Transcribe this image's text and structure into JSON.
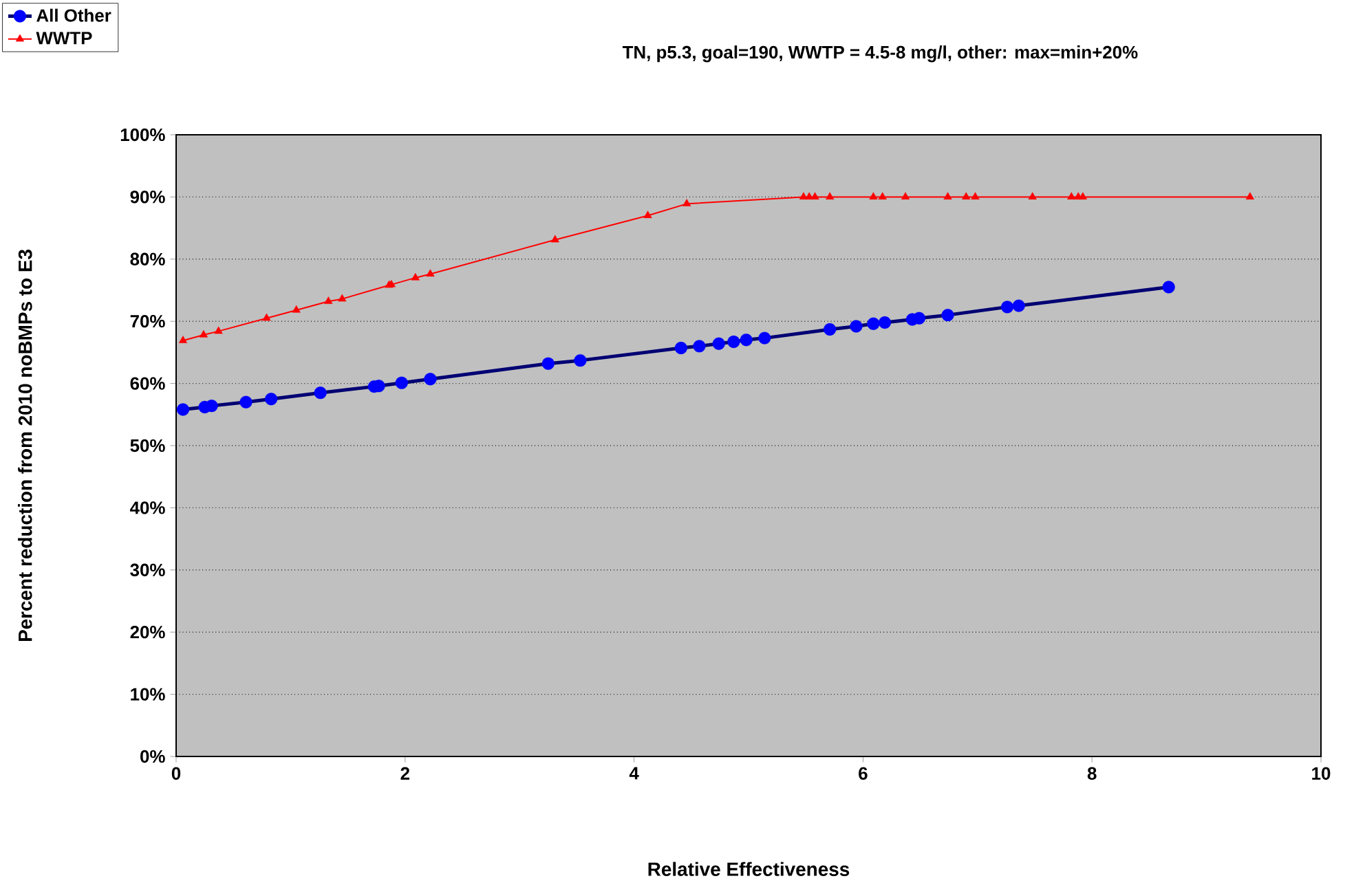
{
  "chart_data": {
    "type": "line",
    "title": "TN, p5.3, goal=190, WWTP = 4.5-8 mg/l, other: max=min+20%",
    "xlabel": "Relative Effectiveness",
    "ylabel": "Percent reduction from 2010 noBMPs to E3",
    "xlim": [
      0,
      10
    ],
    "xticks": [
      0,
      2,
      4,
      6,
      8,
      10
    ],
    "ylim": [
      0,
      100
    ],
    "yticks": [
      {
        "value": 0,
        "label": "0%"
      },
      {
        "value": 10,
        "label": "10%"
      },
      {
        "value": 20,
        "label": "20%"
      },
      {
        "value": 30,
        "label": "30%"
      },
      {
        "value": 40,
        "label": "40%"
      },
      {
        "value": 50,
        "label": "50%"
      },
      {
        "value": 60,
        "label": "60%"
      },
      {
        "value": 70,
        "label": "70%"
      },
      {
        "value": 80,
        "label": "80%"
      },
      {
        "value": 90,
        "label": "90%"
      },
      {
        "value": 100,
        "label": "100%"
      }
    ],
    "grid": "y",
    "legend": "top left",
    "series": [
      {
        "name": "All Other",
        "color": "#0000ff",
        "marker": "circle",
        "x": [
          0.06,
          0.25,
          0.31,
          0.61,
          0.83,
          1.26,
          1.73,
          1.77,
          1.97,
          2.22,
          3.25,
          3.53,
          4.41,
          4.57,
          4.74,
          4.87,
          4.98,
          5.14,
          5.71,
          5.94,
          6.09,
          6.19,
          6.43,
          6.49,
          6.74,
          7.26,
          7.36,
          8.67
        ],
        "values": [
          55.8,
          56.2,
          56.4,
          57.0,
          57.5,
          58.5,
          59.5,
          59.6,
          60.1,
          60.7,
          63.2,
          63.7,
          65.7,
          66.0,
          66.4,
          66.7,
          67.0,
          67.3,
          68.7,
          69.2,
          69.6,
          69.8,
          70.3,
          70.5,
          71.0,
          72.3,
          72.5,
          75.5
        ]
      },
      {
        "name": "WWTP",
        "color": "#ff0000",
        "marker": "triangle",
        "x": [
          0.06,
          0.24,
          0.37,
          0.79,
          1.05,
          1.33,
          1.45,
          1.86,
          1.88,
          2.09,
          2.22,
          3.31,
          4.12,
          4.46,
          5.48,
          5.53,
          5.58,
          5.71,
          6.09,
          6.17,
          6.37,
          6.74,
          6.9,
          6.98,
          7.48,
          7.82,
          7.88,
          7.92,
          9.38
        ],
        "values": [
          66.9,
          67.8,
          68.4,
          70.5,
          71.8,
          73.2,
          73.6,
          75.8,
          75.9,
          77.0,
          77.6,
          83.1,
          87.0,
          88.9,
          90,
          90,
          90,
          90,
          90,
          90,
          90,
          90,
          90,
          90,
          90,
          90,
          90,
          90,
          90
        ]
      }
    ]
  }
}
